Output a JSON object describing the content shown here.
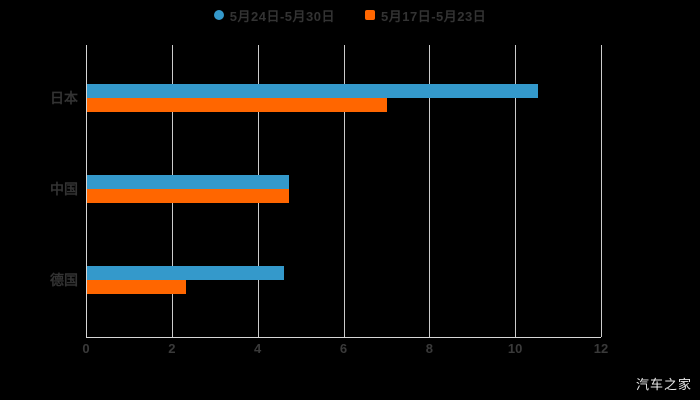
{
  "chart_data": {
    "type": "bar",
    "orientation": "horizontal",
    "title": "",
    "categories": [
      "日本",
      "中国",
      "德国"
    ],
    "series": [
      {
        "name": "5月24日-5月30日",
        "color": "#3499cb",
        "marker": "circle",
        "values": [
          10.5,
          4.7,
          4.6
        ]
      },
      {
        "name": "5月17日-5月23日",
        "color": "#ff6600",
        "marker": "square",
        "values": [
          7.0,
          4.7,
          2.3
        ]
      }
    ],
    "xlabel": "",
    "ylabel": "",
    "xlim": [
      0,
      12
    ],
    "xticks": [
      0,
      2,
      4,
      6,
      8,
      10,
      12
    ],
    "grid": true,
    "legend_position": "top",
    "background_color": "#000000",
    "text_color": "#333333",
    "grid_color": "#cccccc"
  },
  "watermark": {
    "text": "汽车之家"
  }
}
